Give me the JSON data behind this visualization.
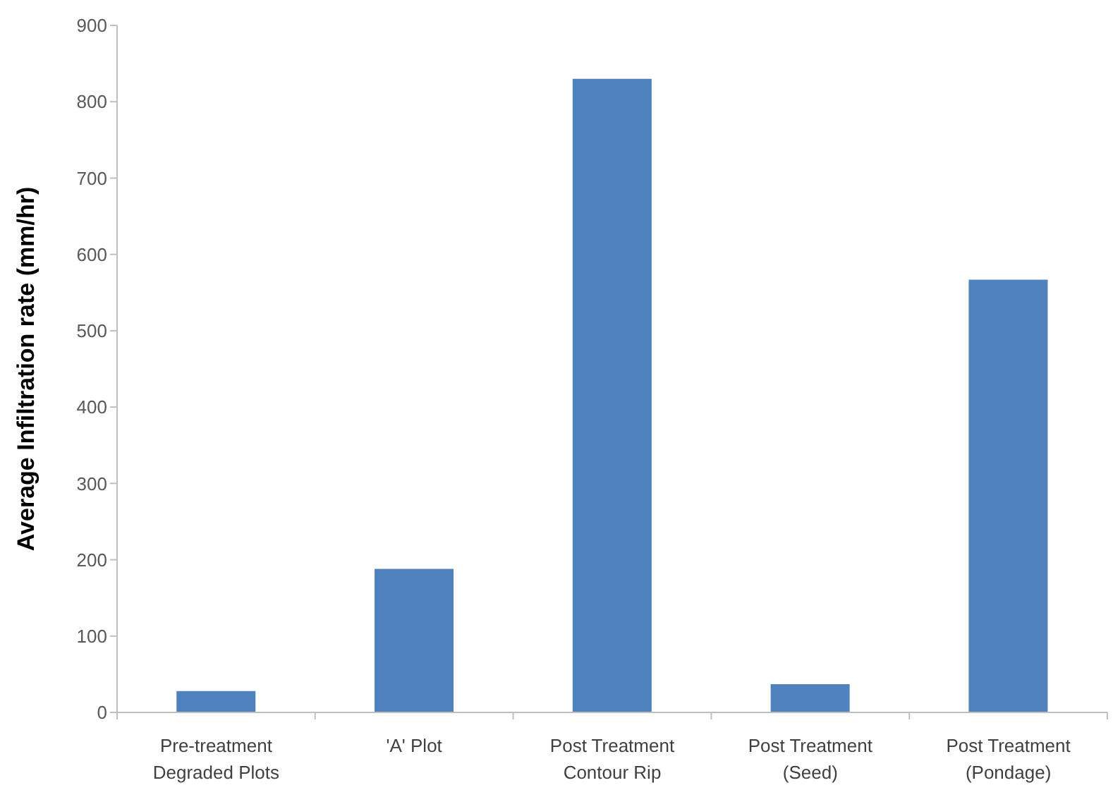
{
  "chart_data": {
    "type": "bar",
    "ylabel": "Average Infiltration rate (mm/hr)",
    "categories": [
      "Pre-treatment\nDegraded Plots",
      "'A' Plot",
      "Post Treatment\nContour Rip",
      "Post Treatment\n(Seed)",
      "Post Treatment\n(Pondage)"
    ],
    "values": [
      28,
      188,
      830,
      37,
      567
    ],
    "color": "#4f81bd",
    "ylim": [
      0,
      900
    ],
    "yticks": [
      0,
      100,
      200,
      300,
      400,
      500,
      600,
      700,
      800,
      900
    ]
  }
}
